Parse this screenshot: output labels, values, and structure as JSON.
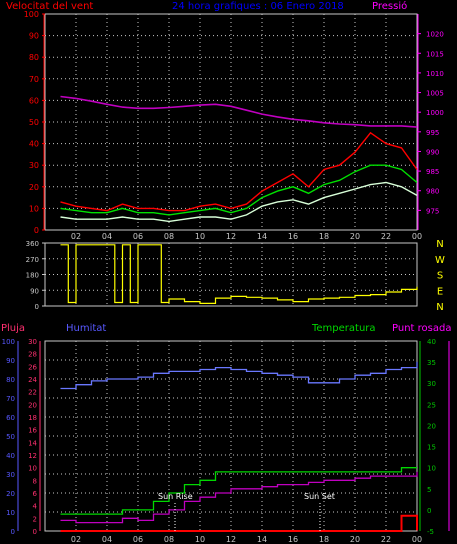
{
  "colors": {
    "wind_axis": "#ff0000",
    "pressure_axis": "#ff00ff",
    "title": "#0000ff",
    "humidity_axis": "#5858ff",
    "temp_axis": "#00c800",
    "grid": "#c8c8c8",
    "wind_gust": "#ff0000",
    "wind_avg": "#00e000",
    "wind_speed": "#d8ffd8",
    "pressure_line": "#c000c0",
    "direction_line": "#ffff00",
    "rain_line": "#ff0000",
    "humidity_line": "#6a78ff",
    "temperature_line": "#00d800",
    "dewpoint_line": "#c000c0",
    "compass": "#ffff00",
    "frame": "#c8c8c8"
  },
  "title": "24 hora grafiques : 06 Enero 2018",
  "hour_ticks": [
    "02",
    "04",
    "06",
    "08",
    "10",
    "12",
    "14",
    "16",
    "18",
    "20",
    "22",
    "00"
  ],
  "wind": {
    "label": "Velocitat del vent",
    "ticks": [
      "0",
      "10",
      "20",
      "30",
      "40",
      "50",
      "60",
      "70",
      "80",
      "90",
      "100"
    ]
  },
  "pressure": {
    "label": "Pressió",
    "ticks": [
      "975",
      "980",
      "985",
      "990",
      "995",
      "1000",
      "1005",
      "1010",
      "1015",
      "1020"
    ]
  },
  "direction": {
    "ticks": [
      "0",
      "90",
      "180",
      "270",
      "360"
    ],
    "compass": [
      "N",
      "W",
      "S",
      "E",
      "N"
    ]
  },
  "bottom": {
    "rain_label": "Pluja",
    "humidity_label": "Humitat",
    "temp_label": "Temperatura",
    "dew_label": "Punt rosada",
    "rain_ticks": [
      "0",
      "2",
      "4",
      "6",
      "8",
      "10",
      "12",
      "14",
      "16",
      "18",
      "20",
      "22",
      "24",
      "26",
      "28",
      "30"
    ],
    "humidity_ticks": [
      "0",
      "10",
      "20",
      "30",
      "40",
      "50",
      "60",
      "70",
      "80",
      "90",
      "100"
    ],
    "temp_ticks": [
      "-5",
      "0",
      "5",
      "10",
      "15",
      "20",
      "25",
      "30",
      "35",
      "40"
    ],
    "sunrise_label": "Sun Rise",
    "sunset_label": "Sun Set"
  },
  "chart_data": [
    {
      "type": "line",
      "title": "24 hora grafiques : 06 Enero 2018",
      "xlabel": "",
      "ylabel": "Velocitat del vent",
      "y2label": "Pressió",
      "x": [
        "01",
        "02",
        "03",
        "04",
        "05",
        "06",
        "07",
        "08",
        "09",
        "10",
        "11",
        "12",
        "13",
        "14",
        "15",
        "16",
        "17",
        "18",
        "19",
        "20",
        "21",
        "22",
        "23",
        "00"
      ],
      "ylim": [
        0,
        100
      ],
      "y2lim": [
        970,
        1025
      ],
      "grid": true,
      "series": [
        {
          "name": "gust",
          "axis": "left",
          "values": [
            13,
            11,
            10,
            9,
            12,
            10,
            10,
            9,
            9,
            11,
            12,
            10,
            12,
            18,
            22,
            26,
            20,
            28,
            30,
            36,
            45,
            40,
            38,
            28
          ]
        },
        {
          "name": "average",
          "axis": "left",
          "values": [
            10,
            9,
            8,
            8,
            10,
            8,
            8,
            7,
            8,
            9,
            10,
            8,
            10,
            15,
            18,
            20,
            17,
            21,
            23,
            27,
            30,
            30,
            28,
            22
          ]
        },
        {
          "name": "speed",
          "axis": "left",
          "values": [
            6,
            5,
            5,
            5,
            6,
            5,
            5,
            4,
            5,
            6,
            6,
            5,
            7,
            11,
            13,
            14,
            12,
            15,
            17,
            19,
            21,
            22,
            20,
            16
          ]
        },
        {
          "name": "pressure",
          "axis": "right",
          "values": [
            1004,
            1003.5,
            1002.8,
            1002,
            1001.3,
            1001,
            1001,
            1001.2,
            1001.5,
            1001.8,
            1002,
            1001.5,
            1000.5,
            999.5,
            998.8,
            998.2,
            997.8,
            997.3,
            997,
            996.8,
            996.5,
            996.5,
            996.5,
            996.2
          ]
        }
      ]
    },
    {
      "type": "line",
      "title": "",
      "xlabel": "",
      "ylabel": "",
      "x": [
        "01",
        "01:30",
        "02",
        "03",
        "04",
        "04:30",
        "05",
        "05:30",
        "06",
        "06:30",
        "07",
        "07:30",
        "08",
        "09",
        "10",
        "11",
        "12",
        "13",
        "14",
        "15",
        "16",
        "17",
        "18",
        "19",
        "20",
        "21",
        "22",
        "23",
        "00"
      ],
      "ylim": [
        0,
        360
      ],
      "grid": true,
      "series": [
        {
          "name": "direction",
          "values": [
            350,
            20,
            350,
            350,
            350,
            20,
            350,
            20,
            350,
            350,
            350,
            20,
            40,
            25,
            15,
            45,
            55,
            50,
            45,
            35,
            25,
            40,
            45,
            50,
            60,
            65,
            80,
            95,
            110
          ]
        }
      ]
    },
    {
      "type": "line",
      "title": "",
      "xlabel": "",
      "ylabel": "Pluja",
      "x": [
        "01",
        "02",
        "03",
        "04",
        "05",
        "06",
        "07",
        "08",
        "09",
        "10",
        "11",
        "12",
        "13",
        "14",
        "15",
        "16",
        "17",
        "18",
        "19",
        "20",
        "21",
        "22",
        "23",
        "00"
      ],
      "axes": {
        "rain": {
          "label": "Pluja",
          "ylim": [
            0,
            30
          ]
        },
        "humidity": {
          "label": "Humitat",
          "ylim": [
            0,
            100
          ]
        },
        "temperature": {
          "label": "Temperatura",
          "ylim": [
            -5,
            40
          ]
        },
        "dew_point": {
          "label": "Punt rosada",
          "ylim": [
            -5,
            40
          ]
        }
      },
      "grid": true,
      "annotations": [
        {
          "text": "Sun Rise",
          "x": "08:30"
        },
        {
          "text": "Sun Set",
          "x": "18:00"
        }
      ],
      "series": [
        {
          "name": "Pluja",
          "axis": "rain",
          "values": [
            0,
            0,
            0,
            0,
            0,
            0,
            0,
            0,
            0,
            0,
            0,
            0,
            0,
            0,
            0,
            0,
            0,
            0,
            0,
            0,
            0,
            0,
            2.4,
            0.1
          ]
        },
        {
          "name": "Humitat",
          "axis": "humidity",
          "values": [
            75,
            77,
            79,
            80,
            80,
            81,
            83,
            84,
            84,
            85,
            86,
            85,
            84,
            83,
            82,
            81,
            78,
            78,
            80,
            82,
            83,
            85,
            86,
            89
          ]
        },
        {
          "name": "Temperatura",
          "axis": "temperature",
          "values": [
            -1,
            -1,
            -1,
            -1,
            0,
            0,
            2,
            4,
            6,
            7,
            9,
            9,
            9,
            9,
            9,
            9,
            9,
            9,
            9,
            9,
            9,
            9,
            10,
            10
          ]
        },
        {
          "name": "Punt rosada",
          "axis": "dew_point",
          "values": [
            -2.5,
            -3,
            -3,
            -3,
            -2,
            -2.5,
            -1,
            0,
            2,
            3,
            4,
            5,
            5,
            5.5,
            6,
            6,
            6.5,
            7,
            7,
            7.5,
            8,
            8,
            8,
            9
          ]
        }
      ]
    }
  ]
}
